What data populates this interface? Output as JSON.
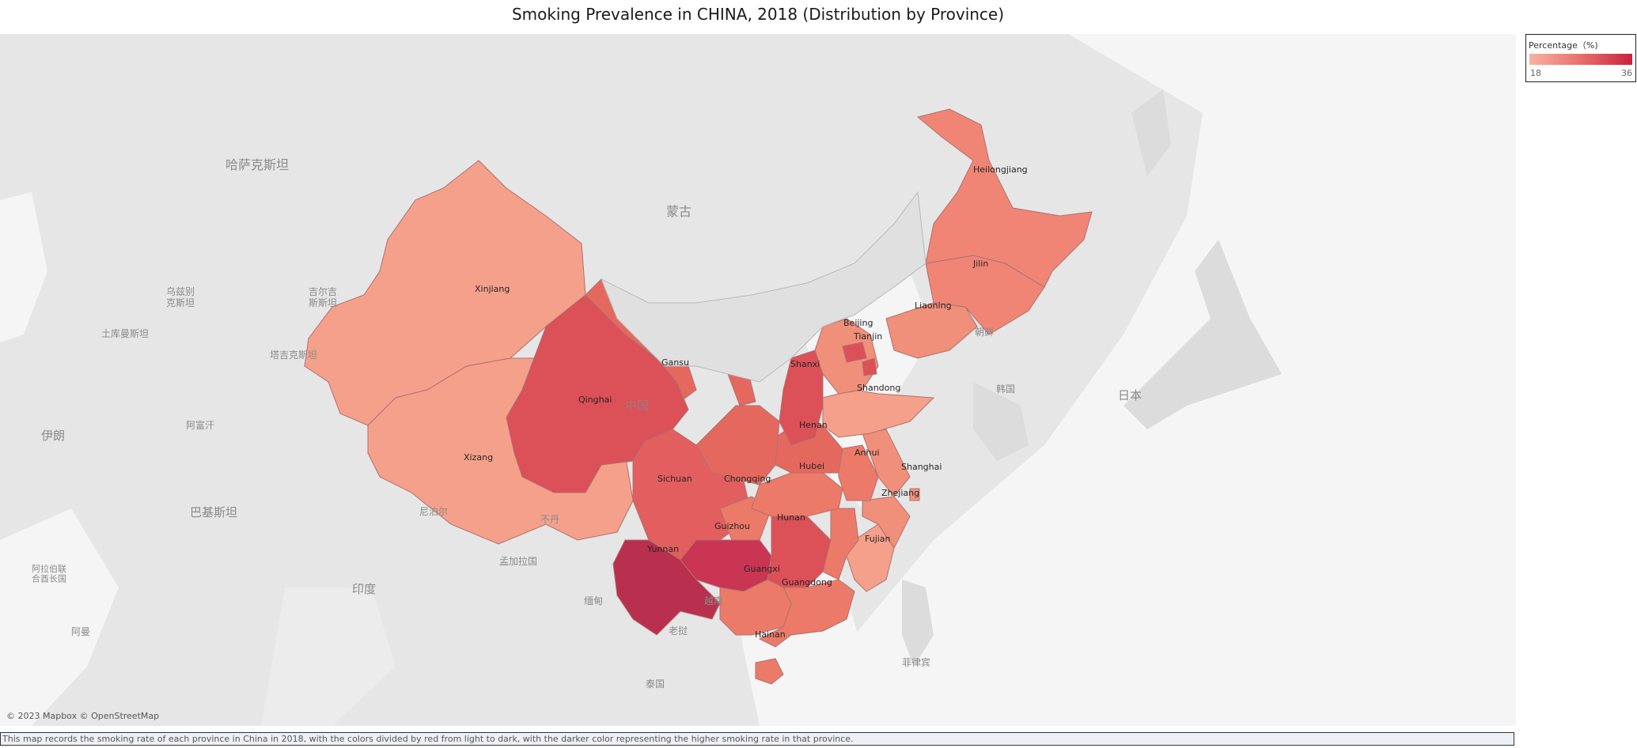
{
  "title": "Smoking Prevalence in CHINA, 2018 (Distribution by Province)",
  "attribution": "© 2023 Mapbox © OpenStreetMap",
  "caption": "This map records the smoking rate of each province in China in 2018, with the colors divided by red from light to dark, with the darker color representing the higher smoking rate in that province.",
  "legend": {
    "title": "Percentage（%)",
    "min": "18",
    "max": "36",
    "color_low": "#f7b3a3",
    "color_high": "#c8223f"
  },
  "basemap_labels": {
    "kazakhstan": "哈萨克斯坦",
    "mongolia": "蒙古",
    "uzbekistan": "乌兹别\n克斯坦",
    "kyrgyzstan": "吉尔吉\n斯斯坦",
    "turkmenistan": "土库曼斯坦",
    "tajikistan": "塔吉克斯坦",
    "afghanistan": "阿富汗",
    "iran": "伊朗",
    "pakistan": "巴基斯坦",
    "nepal": "尼泊尔",
    "bhutan": "不丹",
    "bangladesh": "孟加拉国",
    "india": "印度",
    "myanmar": "缅甸",
    "vietnam": "越南",
    "laos": "老挝",
    "thailand": "泰国",
    "philippines": "菲律宾",
    "north_korea": "朝鲜",
    "south_korea": "韩国",
    "japan": "日本",
    "china": "中国",
    "uae": "阿拉伯联\n合酋长国",
    "oman": "阿曼"
  },
  "provinces": {
    "heilongjiang": "Heilongjiang",
    "jilin": "Jilin",
    "liaoning": "Liaoning",
    "beijing": "Beijing",
    "tianjin": "Tianjin",
    "xinjiang": "Xinjiang",
    "gansu": "Gansu",
    "qinghai": "Qinghai",
    "xizang": "Xizang",
    "shanxi": "Shanxi",
    "shandong": "Shandong",
    "henan": "Henan",
    "anhui": "Anhui",
    "shanghai": "Shanghai",
    "hubei": "Hubei",
    "sichuan": "Sichuan",
    "chongqing": "Chongqing",
    "zhejiang": "Zhejiang",
    "hunan": "Hunan",
    "guizhou": "Guizhou",
    "fujian": "Fujian",
    "yunnan": "Yunnan",
    "guangxi": "Guangxi",
    "guangdong": "Guangdong",
    "hainan": "Hainan"
  }
}
